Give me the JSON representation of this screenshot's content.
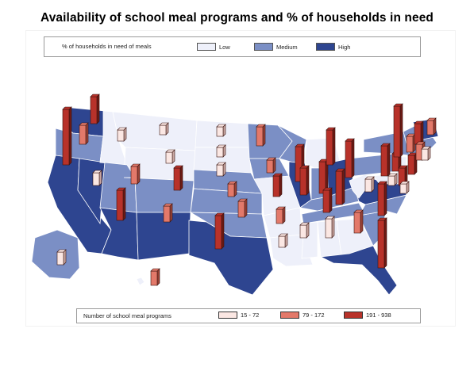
{
  "title": "Availability of school meal programs and % of households in need",
  "legend_need": {
    "title": "% of households in need of meals",
    "items": [
      {
        "label": "Low",
        "color": "#eef0fa"
      },
      {
        "label": "Medium",
        "color": "#7b8fc5"
      },
      {
        "label": "High",
        "color": "#2e4590"
      }
    ]
  },
  "legend_programs": {
    "title": "Number of school meal programs",
    "items": [
      {
        "label": "15 - 72",
        "color": "#fbe7e3"
      },
      {
        "label": "79 - 172",
        "color": "#e3796a"
      },
      {
        "label": "191 - 938",
        "color": "#b8322a"
      }
    ]
  },
  "colors": {
    "border": "#1f2b55",
    "bar_dark_side": "#6e1a14",
    "bar_medium_side": "#9b4236",
    "bar_light_side": "#c9a7a1"
  }
}
